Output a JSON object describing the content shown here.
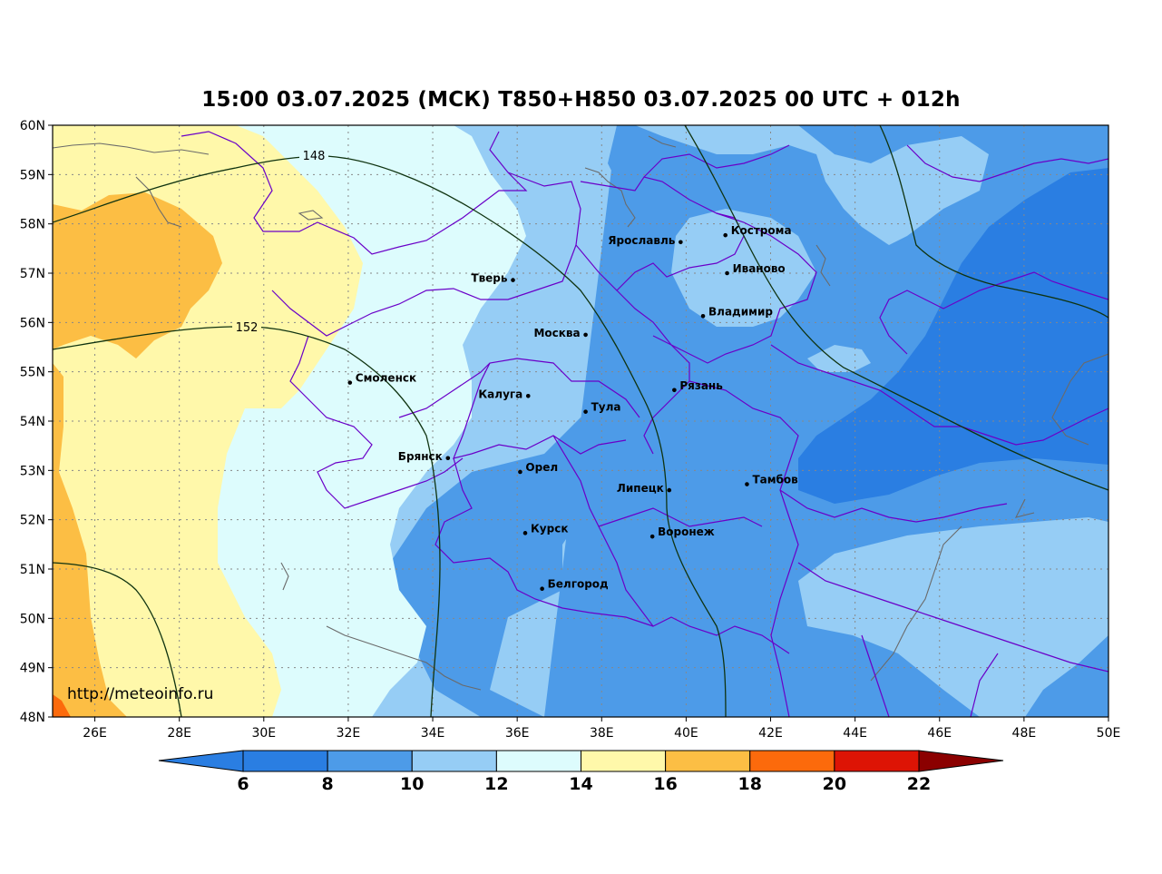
{
  "title": "15:00 03.07.2025 (МСК) T850+H850 03.07.2025 00 UTC + 012h",
  "credit": "http://meteoinfo.ru",
  "axes": {
    "lat_labels": [
      "60N",
      "59N",
      "58N",
      "57N",
      "56N",
      "55N",
      "54N",
      "53N",
      "52N",
      "51N",
      "50N",
      "49N",
      "48N"
    ],
    "lon_labels": [
      "26E",
      "28E",
      "30E",
      "32E",
      "34E",
      "36E",
      "38E",
      "40E",
      "42E",
      "44E",
      "46E",
      "48E",
      "50E"
    ]
  },
  "geopotential_contours": [
    {
      "label": "148"
    },
    {
      "label": "152"
    }
  ],
  "cities": [
    {
      "name": "Ярославль",
      "lon": 39.87,
      "lat": 57.63
    },
    {
      "name": "Кострома",
      "lon": 40.93,
      "lat": 57.77
    },
    {
      "name": "Иваново",
      "lon": 40.97,
      "lat": 57.0
    },
    {
      "name": "Тверь",
      "lon": 35.9,
      "lat": 56.86
    },
    {
      "name": "Владимир",
      "lon": 40.4,
      "lat": 56.13
    },
    {
      "name": "Москва",
      "lon": 37.62,
      "lat": 55.75
    },
    {
      "name": "Смоленск",
      "lon": 32.04,
      "lat": 54.78
    },
    {
      "name": "Калуга",
      "lon": 36.26,
      "lat": 54.51
    },
    {
      "name": "Рязань",
      "lon": 39.72,
      "lat": 54.63
    },
    {
      "name": "Тула",
      "lon": 37.62,
      "lat": 54.19
    },
    {
      "name": "Брянск",
      "lon": 34.36,
      "lat": 53.25
    },
    {
      "name": "Орел",
      "lon": 36.07,
      "lat": 52.97
    },
    {
      "name": "Липецк",
      "lon": 39.6,
      "lat": 52.6
    },
    {
      "name": "Тамбов",
      "lon": 41.44,
      "lat": 52.72
    },
    {
      "name": "Курск",
      "lon": 36.19,
      "lat": 51.73
    },
    {
      "name": "Воронеж",
      "lon": 39.2,
      "lat": 51.66
    },
    {
      "name": "Белгород",
      "lon": 36.59,
      "lat": 50.6
    }
  ],
  "colorbar": {
    "labels": [
      "6",
      "8",
      "10",
      "12",
      "14",
      "16",
      "18",
      "20",
      "22"
    ],
    "colors": [
      "#2a7ee2",
      "#4d9be8",
      "#96cdf5",
      "#ddfcfd",
      "#fff8aa",
      "#fcbe44",
      "#fc6a0c",
      "#dd1405",
      "#8b0000"
    ]
  },
  "colors": {
    "band_6_8": "#2a7ee2",
    "band_8_10": "#4d9be8",
    "band_10_12": "#96cdf5",
    "band_12_14": "#ddfcfd",
    "band_14_16": "#fff8aa",
    "band_16_18": "#fcbe44",
    "band_18_20": "#fc6a0c",
    "admin_border": "#6a00c8",
    "contour": "#0f3310",
    "water": "#6a6a6a"
  }
}
